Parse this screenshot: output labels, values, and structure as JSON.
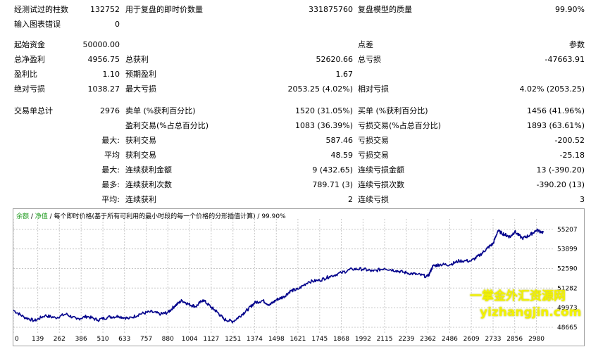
{
  "report": {
    "bars_label": "经测试过的柱数",
    "bars_value": "132752",
    "ticks_label": "用于复盘的即时价数量",
    "ticks_value": "331875760",
    "quality_label": "复盘模型的质量",
    "quality_value": "99.90%",
    "errors_label": "输入图表错误",
    "errors_value": "0",
    "deposit_label": "起始资金",
    "deposit_value": "50000.00",
    "spread_label": "点差",
    "spread_value": "参数",
    "net_label": "总净盈利",
    "net_value": "4956.75",
    "gross_profit_label": "总获利",
    "gross_profit_value": "52620.66",
    "gross_loss_label": "总亏损",
    "gross_loss_value": "-47663.91",
    "pf_label": "盈利比",
    "pf_value": "1.10",
    "payoff_label": "预期盈利",
    "payoff_value": "1.67",
    "abs_dd_label": "绝对亏损",
    "abs_dd_value": "1038.27",
    "max_dd_label": "最大亏损",
    "max_dd_value": "2053.25 (4.02%)",
    "rel_dd_label": "相对亏损",
    "rel_dd_value": "4.02% (2053.25)",
    "trades_label": "交易单总计",
    "trades_value": "2976",
    "short_label": "卖单 (%获利百分比)",
    "short_value": "1520 (31.05%)",
    "long_label": "买单 (%获利百分比)",
    "long_value": "1456 (41.96%)",
    "profit_trades_label": "盈利交易(%占总百分比)",
    "profit_trades_value": "1083 (36.39%)",
    "loss_trades_label": "亏损交易(%占总百分比)",
    "loss_trades_value": "1893 (63.61%)",
    "max_prefix": "最大:",
    "avg_prefix": "平均",
    "max_prefix2": "最大:",
    "most_prefix": "最多:",
    "avg_prefix2": "平均:",
    "largest_profit_label": "获利交易",
    "largest_profit_value": "587.46",
    "largest_loss_label": "亏损交易",
    "largest_loss_value": "-200.52",
    "avg_profit_label": "获利交易",
    "avg_profit_value": "48.59",
    "avg_loss_label": "亏损交易",
    "avg_loss_value": "-25.18",
    "max_cons_wins_label": "连续获利金额",
    "max_cons_wins_value": "9 (432.65)",
    "max_cons_losses_label": "连续亏损金额",
    "max_cons_losses_value": "13 (-390.20)",
    "max_cons_profit_label": "连续获利次数",
    "max_cons_profit_value": "789.71 (3)",
    "max_cons_loss_label": "连续亏损次数",
    "max_cons_loss_value": "-390.20 (13)",
    "avg_cons_wins_label": "连续获利",
    "avg_cons_wins_value": "2",
    "avg_cons_losses_label": "连续亏损",
    "avg_cons_losses_value": "3"
  },
  "chart_legend": {
    "balance": "余额",
    "sep1": " / ",
    "equity": "净值",
    "rest": " / 每个即时价格(基于所有可利用的最小时段的每一个价格的分形插值计算) / 99.90%"
  },
  "watermark": {
    "line1": "一掌金外汇资源网",
    "line2": "yizhangjin.com"
  },
  "colors": {
    "line": "#00008b",
    "grid": "#c8c8c8",
    "watermark": "#f2f200"
  },
  "chart_data": {
    "type": "line",
    "x_ticks": [
      "0",
      "139",
      "262",
      "386",
      "510",
      "633",
      "757",
      "880",
      "1004",
      "1127",
      "1251",
      "1374",
      "1498",
      "1621",
      "1745",
      "1868",
      "1992",
      "2115",
      "2239",
      "2362",
      "2486",
      "2609",
      "2733",
      "2856",
      "2980"
    ],
    "y_ticks": [
      "55207",
      "53899",
      "52590",
      "51282",
      "49973",
      "48665"
    ],
    "ylim": [
      48665,
      55900
    ],
    "xlim": [
      0,
      3050
    ],
    "series": [
      {
        "x": [
          0,
          60,
          120,
          180,
          240,
          300,
          360,
          420,
          480,
          540,
          600,
          660,
          720,
          780,
          840,
          880,
          920,
          960,
          1000,
          1040,
          1080,
          1127,
          1160,
          1200,
          1251,
          1300,
          1340,
          1374,
          1420,
          1460,
          1498,
          1540,
          1580,
          1621,
          1680,
          1745,
          1800,
          1868,
          1930,
          1992,
          2050,
          2115,
          2180,
          2239,
          2300,
          2362,
          2390,
          2430,
          2486,
          2540,
          2609,
          2660,
          2700,
          2733,
          2760,
          2800,
          2830,
          2856,
          2900,
          2940,
          2980,
          3020
        ],
        "y": [
          49800,
          49350,
          49100,
          49450,
          49300,
          49550,
          49200,
          49400,
          49150,
          49350,
          49400,
          49250,
          49550,
          49700,
          49550,
          49650,
          50100,
          50450,
          50200,
          50050,
          50500,
          50000,
          49700,
          49200,
          49050,
          49500,
          49900,
          50300,
          50450,
          50150,
          50500,
          50700,
          51100,
          51200,
          51700,
          51800,
          52050,
          52300,
          52550,
          52550,
          52400,
          52600,
          52450,
          52300,
          52200,
          52050,
          52750,
          52850,
          52850,
          53100,
          53100,
          53500,
          53950,
          54250,
          55100,
          54850,
          54700,
          55050,
          54600,
          54800,
          55150,
          55000
        ]
      }
    ]
  }
}
